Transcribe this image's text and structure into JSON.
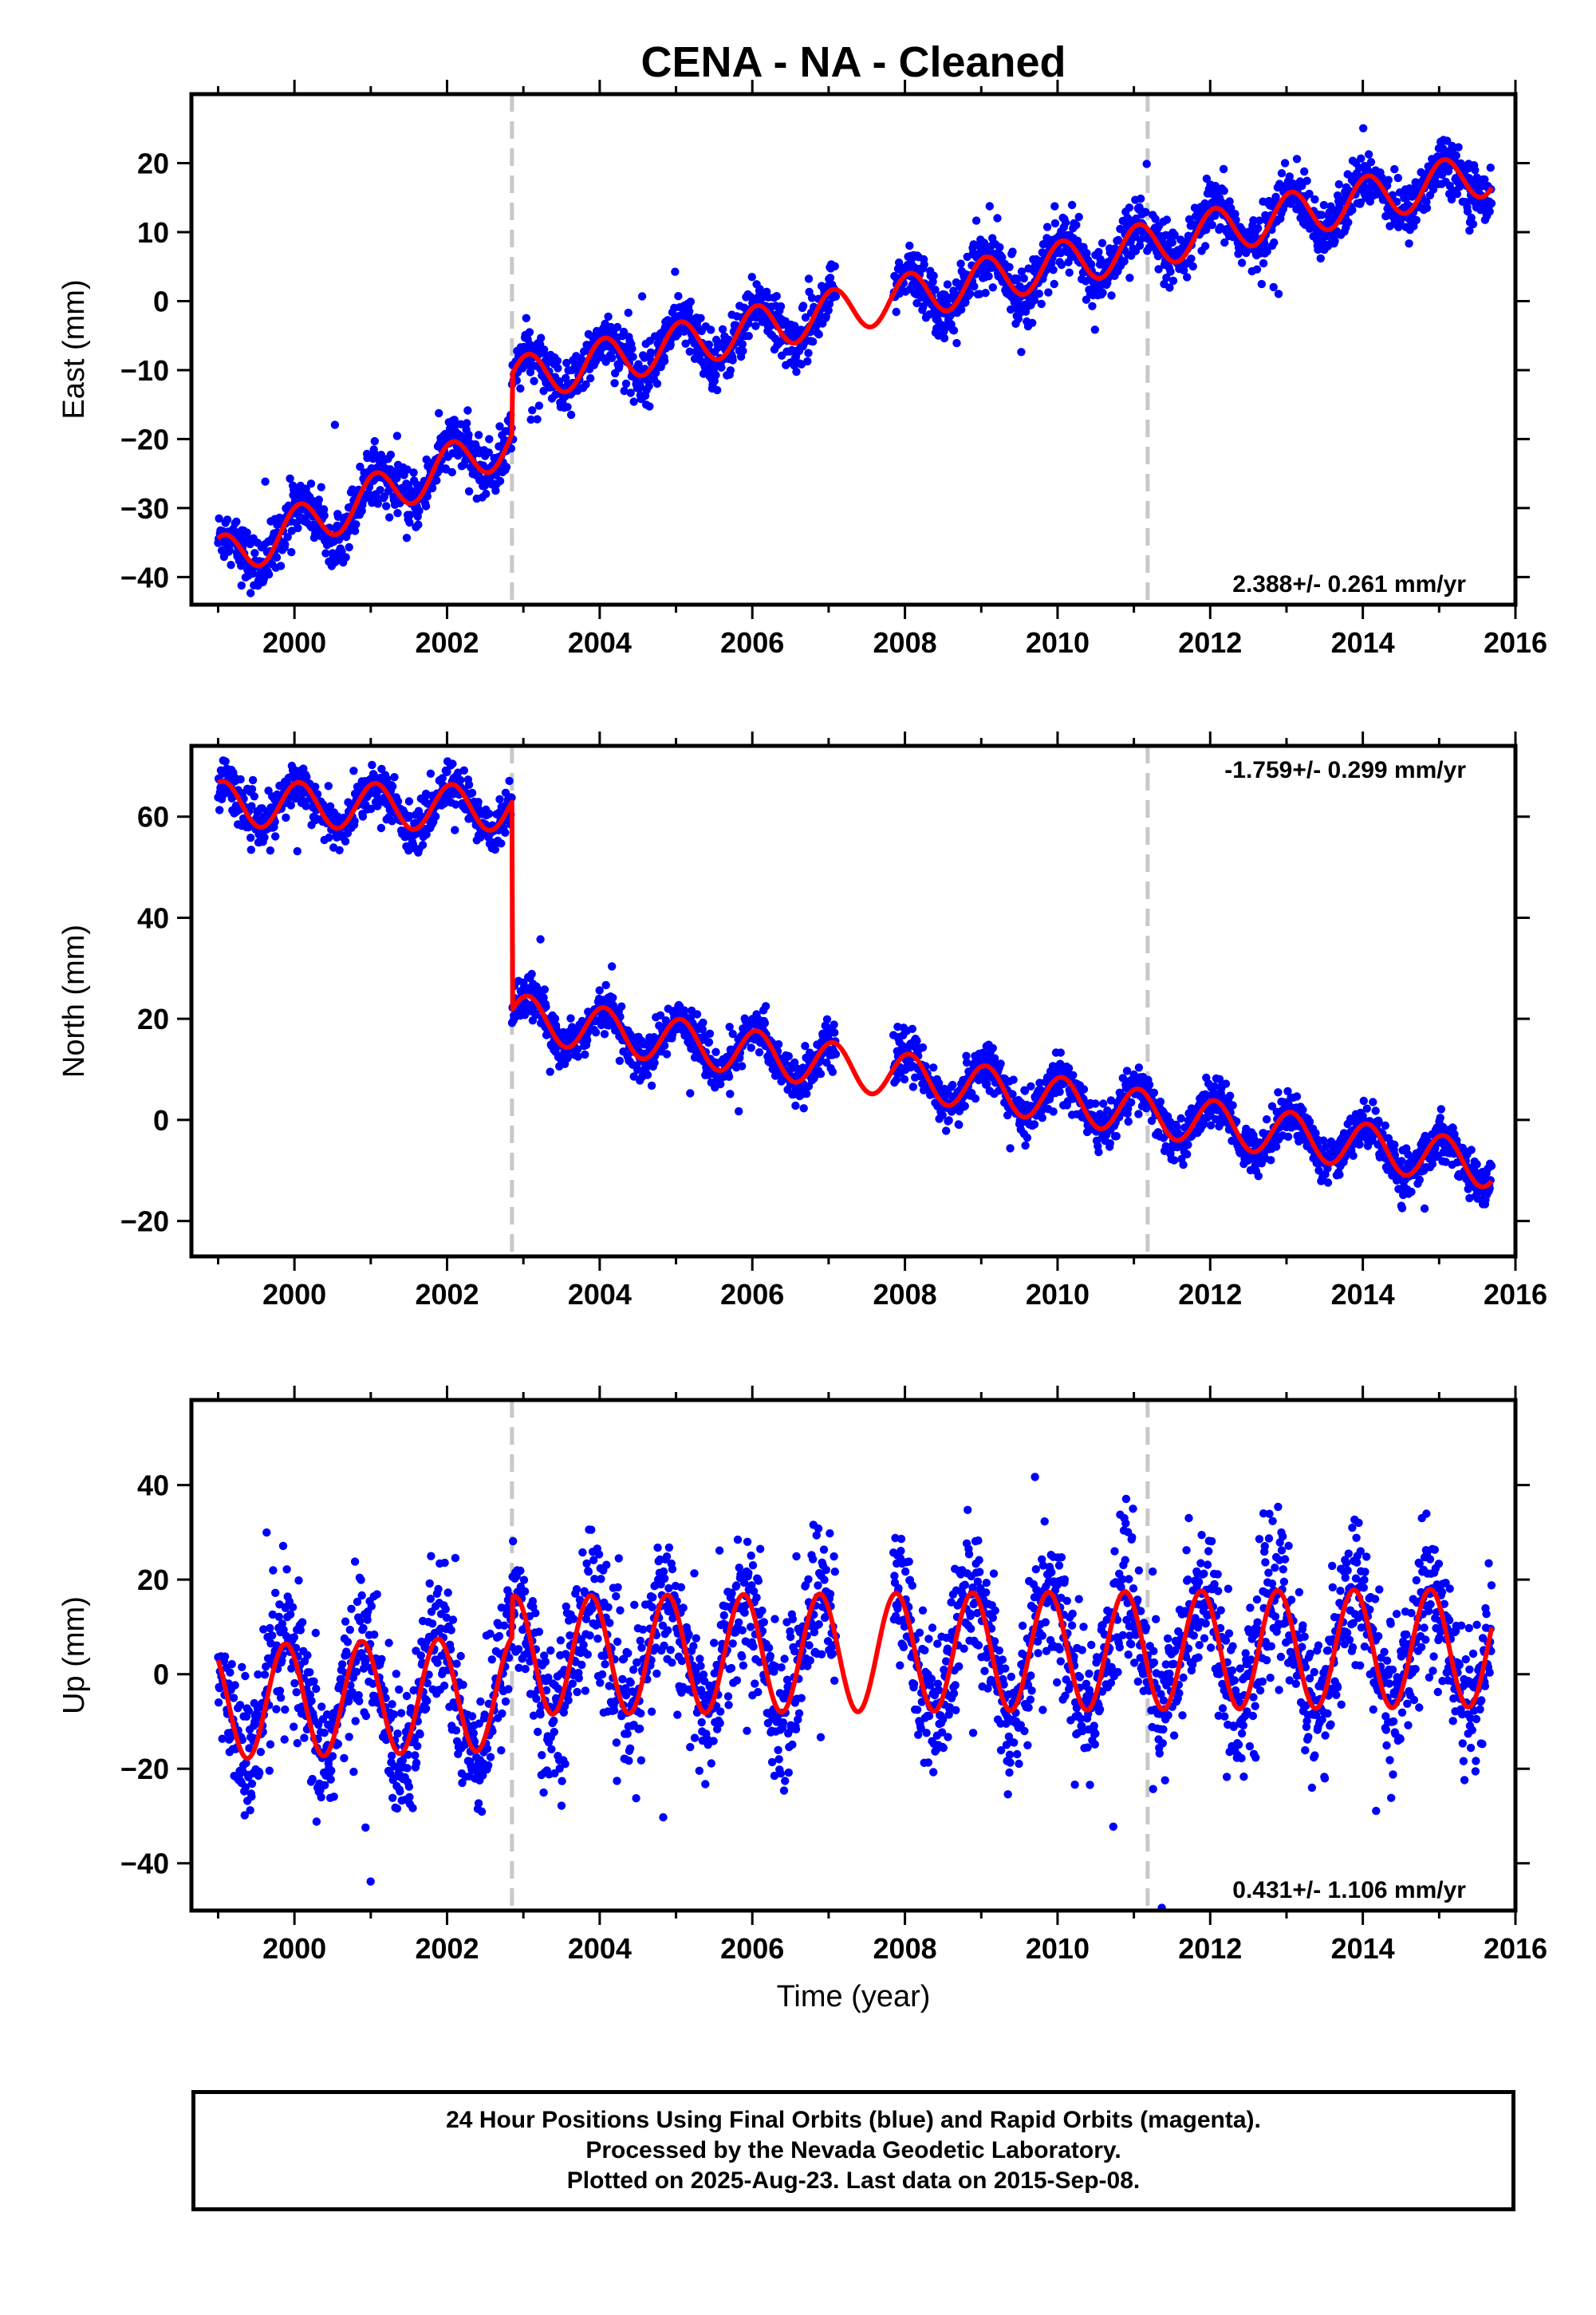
{
  "chart_data": {
    "type": "scatter",
    "title": "CENA  - NA - Cleaned",
    "xlabel": "Time (year)",
    "xlim": [
      1998.65,
      2016.0
    ],
    "x_ticks": [
      2000,
      2002,
      2004,
      2006,
      2008,
      2010,
      2012,
      2014,
      2016
    ],
    "x_tick_labels": [
      "2000",
      "2002",
      "2004",
      "2006",
      "2008",
      "2010",
      "2012",
      "2014",
      "2016"
    ],
    "data_range": [
      1999.0,
      2015.69
    ],
    "series": [
      {
        "name": "24 Hour Positions (Final Orbits)",
        "kind": "points",
        "color": "#0000ff"
      },
      {
        "name": "Model fit",
        "kind": "line",
        "color": "#ff0000"
      }
    ],
    "step_epochs": [
      2002.85,
      2011.18
    ],
    "panels": [
      {
        "id": "east",
        "ylabel": "East (mm)",
        "ylim": [
          -44,
          30
        ],
        "y_ticks": [
          -40,
          -30,
          -20,
          -10,
          0,
          10,
          20
        ],
        "y_tick_labels": [
          "−40",
          "−30",
          "−20",
          "−10",
          "0",
          "10",
          "20"
        ],
        "rate_text": "2.388+/- 0.261 mm/yr",
        "rate_position": "bottom-right",
        "model": {
          "breaks": [
            2002.85
          ],
          "segment_start_values": [
            -37.5,
            -11.5
          ],
          "segment_slopes": [
            4.5,
            2.35
          ],
          "annual_amplitude": 3.3,
          "annual_phase": 1.2,
          "scatter": 2.0
        }
      },
      {
        "id": "north",
        "ylabel": "North (mm)",
        "ylim": [
          -27,
          74
        ],
        "y_ticks": [
          -20,
          0,
          20,
          40,
          60
        ],
        "y_tick_labels": [
          "−20",
          "0",
          "20",
          "40",
          "60"
        ],
        "rate_text": "-1.759+/- 0.299 mm/yr",
        "rate_position": "top-right",
        "model": {
          "breaks": [
            2002.85
          ],
          "segment_start_values": [
            62.5,
            20.5
          ],
          "segment_slopes": [
            -0.2,
            -2.3
          ],
          "annual_amplitude": 4.5,
          "annual_phase": 1.2,
          "scatter": 2.2
        }
      },
      {
        "id": "up",
        "ylabel": "Up (mm)",
        "ylim": [
          -50,
          58
        ],
        "y_ticks": [
          -40,
          -20,
          0,
          20,
          40
        ],
        "y_tick_labels": [
          "−40",
          "−20",
          "0",
          "20",
          "40"
        ],
        "rate_text": "0.431+/- 1.106 mm/yr",
        "rate_position": "bottom-right",
        "model": {
          "breaks": [
            2002.85
          ],
          "segment_start_values": [
            -6.0,
            4.0
          ],
          "segment_slopes": [
            0.5,
            0.12
          ],
          "annual_amplitude_before": 12.0,
          "annual_amplitude_after": 12.5,
          "annual_phase": 2.3,
          "scatter": 7.5
        }
      }
    ]
  },
  "footer": {
    "line1": "24 Hour Positions Using Final Orbits (blue) and Rapid Orbits (magenta).",
    "line2": "Processed by the Nevada Geodetic Laboratory.",
    "line3": "Plotted on 2025-Aug-23. Last data on 2015-Sep-08."
  }
}
